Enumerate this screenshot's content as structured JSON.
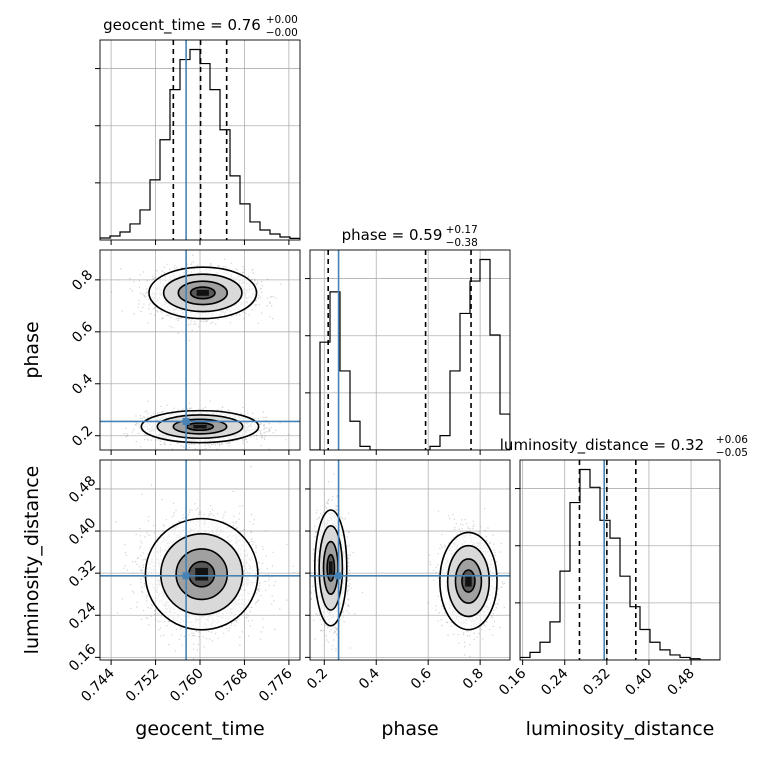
{
  "chart_data": {
    "type": "corner",
    "parameters": [
      "geocent_time",
      "phase",
      "luminosity_distance"
    ],
    "truths": {
      "geocent_time": 0.7575,
      "phase": 0.255,
      "luminosity_distance": 0.315
    },
    "axes": {
      "geocent_time": {
        "range": [
          0.742,
          0.778
        ],
        "ticks": [
          "0.744",
          "0.752",
          "0.760",
          "0.768",
          "0.776"
        ],
        "tick_values": [
          0.744,
          0.752,
          0.76,
          0.768,
          0.776
        ],
        "label": "geocent_time"
      },
      "phase": {
        "range": [
          0.145,
          0.915
        ],
        "ticks": [
          "0.2",
          "0.4",
          "0.6",
          "0.8"
        ],
        "tick_values": [
          0.2,
          0.4,
          0.6,
          0.8
        ],
        "label": "phase"
      },
      "luminosity_distance": {
        "range": [
          0.155,
          0.535
        ],
        "ticks": [
          "0.16",
          "0.24",
          "0.32",
          "0.40",
          "0.48"
        ],
        "tick_values": [
          0.16,
          0.24,
          0.32,
          0.4,
          0.48
        ],
        "label": "luminosity_distance"
      }
    },
    "titles": {
      "geocent_time": {
        "text": "geocent_time = 0.76",
        "plus": "+0.00",
        "minus": "−0.00"
      },
      "phase": {
        "text": "phase = 0.59",
        "plus": "+0.17",
        "minus": "−0.38"
      },
      "luminosity_distance": {
        "text": "luminosity_distance = 0.32",
        "plus": "+0.06",
        "minus": "−0.05"
      }
    },
    "quantiles": {
      "geocent_time": [
        0.7552,
        0.7601,
        0.7648
      ],
      "phase": [
        0.215,
        0.59,
        0.765
      ],
      "luminosity_distance": [
        0.268,
        0.32,
        0.375
      ]
    },
    "histograms": {
      "geocent_time": {
        "edges_start": 0.742,
        "bin_width": 0.0018,
        "counts": [
          1,
          2,
          4,
          8,
          15,
          30,
          50,
          75,
          90,
          95,
          88,
          75,
          55,
          32,
          18,
          9,
          5,
          3,
          1.5,
          0.8
        ]
      },
      "phase": {
        "edges_start": 0.145,
        "bin_width": 0.0385,
        "counts": [
          0,
          30,
          44,
          22,
          8,
          1,
          0,
          0,
          0,
          0,
          0,
          0,
          1,
          4,
          22,
          38,
          47,
          53,
          32,
          10
        ]
      },
      "luminosity_distance": {
        "edges_start": 0.155,
        "bin_width": 0.019,
        "counts": [
          1,
          3,
          7,
          15,
          35,
          62,
          75,
          68,
          55,
          48,
          33,
          21,
          12,
          7,
          4,
          2,
          1,
          0.5,
          0,
          0
        ]
      }
    },
    "blobs": [
      {
        "x": "geocent_time",
        "y": "phase",
        "cx": 0.7605,
        "cy": 0.75,
        "sx": 0.0044,
        "sy": 0.045,
        "n": 1900
      },
      {
        "x": "geocent_time",
        "y": "phase",
        "cx": 0.76,
        "cy": 0.235,
        "sx": 0.0048,
        "sy": 0.028,
        "n": 2300
      },
      {
        "x": "geocent_time",
        "y": "luminosity_distance",
        "cx": 0.7603,
        "cy": 0.318,
        "sx": 0.0046,
        "sy": 0.048,
        "n": 3300
      },
      {
        "x": "phase",
        "y": "luminosity_distance",
        "cx": 0.225,
        "cy": 0.33,
        "sx": 0.028,
        "sy": 0.05,
        "n": 1700
      },
      {
        "x": "phase",
        "y": "luminosity_distance",
        "cx": 0.755,
        "cy": 0.305,
        "sx": 0.05,
        "sy": 0.042,
        "n": 1700
      }
    ],
    "grid": true,
    "truth_color": "#4682b4",
    "hist_color": "#000000"
  }
}
